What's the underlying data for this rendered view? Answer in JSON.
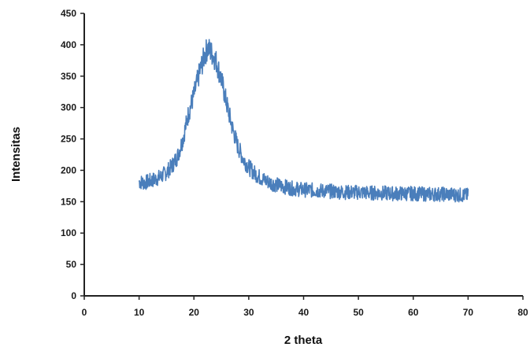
{
  "chart_data": {
    "type": "line",
    "title": "",
    "xlabel": "2 theta",
    "ylabel": "Intensitas",
    "xlim": [
      0,
      80
    ],
    "ylim": [
      0,
      450
    ],
    "x_ticks": [
      0,
      10,
      20,
      30,
      40,
      50,
      60,
      70,
      80
    ],
    "y_ticks": [
      0,
      50,
      100,
      150,
      200,
      250,
      300,
      350,
      400,
      450
    ],
    "grid": false,
    "legend": "none",
    "line_color": "#4a7ebb",
    "series": [
      {
        "x": [
          10,
          11,
          12,
          13,
          14,
          15,
          16,
          17,
          18,
          19,
          20,
          21,
          22,
          22.5,
          23,
          24,
          25,
          26,
          27,
          28,
          29,
          30,
          31,
          32,
          33,
          34,
          35,
          36,
          37,
          38,
          39,
          40,
          42,
          44,
          46,
          48,
          50,
          52,
          54,
          56,
          58,
          60,
          62,
          64,
          66,
          68,
          70
        ],
        "values": [
          182,
          180,
          183,
          186,
          190,
          197,
          207,
          222,
          250,
          290,
          320,
          355,
          385,
          395,
          390,
          375,
          345,
          305,
          268,
          238,
          218,
          205,
          196,
          189,
          184,
          180,
          177,
          175,
          173,
          171,
          170,
          169,
          168,
          167,
          166,
          165,
          165,
          164,
          164,
          163,
          163,
          163,
          162,
          162,
          162,
          161,
          160
        ]
      }
    ]
  }
}
